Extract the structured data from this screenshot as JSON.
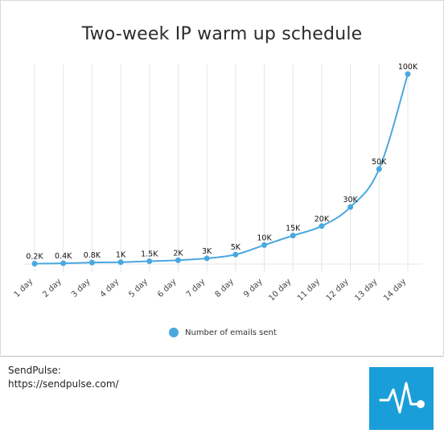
{
  "chart_data": {
    "type": "line",
    "title": "Two-week IP warm up schedule",
    "categories": [
      "1 day",
      "2 day",
      "3 day",
      "4 day",
      "5 day",
      "6 day",
      "7 day",
      "8 day",
      "9 day",
      "10 day",
      "11 day",
      "12 day",
      "13 day",
      "14 day"
    ],
    "series": [
      {
        "name": "Number of emails sent",
        "values": [
          200,
          400,
          800,
          1000,
          1500,
          2000,
          3000,
          5000,
          10000,
          15000,
          20000,
          30000,
          50000,
          100000
        ],
        "labels": [
          "0.2K",
          "0.4K",
          "0.8K",
          "1K",
          "1.5K",
          "2K",
          "3K",
          "5K",
          "10K",
          "15K",
          "20K",
          "30K",
          "50K",
          "100K"
        ],
        "color": "#49a8df"
      }
    ],
    "ylim": [
      0,
      100000
    ],
    "grid": true,
    "legend": "bottom"
  },
  "footer": {
    "line1": "SendPulse:",
    "line2": "https://sendpulse.com/"
  },
  "logo": {
    "icon": "sendpulse-pulse-icon",
    "color": "#1a9ed9"
  }
}
